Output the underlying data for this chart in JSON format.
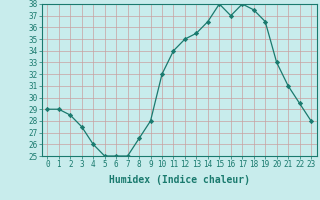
{
  "xlabel": "Humidex (Indice chaleur)",
  "ylabel": "",
  "x": [
    0,
    1,
    2,
    3,
    4,
    5,
    6,
    7,
    8,
    9,
    10,
    11,
    12,
    13,
    14,
    15,
    16,
    17,
    18,
    19,
    20,
    21,
    22,
    23
  ],
  "y": [
    29.0,
    29.0,
    28.5,
    27.5,
    26.0,
    25.0,
    25.0,
    25.0,
    26.5,
    28.0,
    32.0,
    34.0,
    35.0,
    35.5,
    36.5,
    38.0,
    37.0,
    38.0,
    37.5,
    36.5,
    33.0,
    31.0,
    29.5,
    28.0
  ],
  "line_color": "#1a7a6e",
  "marker": "D",
  "marker_size": 2.2,
  "bg_color": "#c8ecec",
  "grid_color": "#c8a0a0",
  "ylim": [
    25,
    38
  ],
  "yticks": [
    25,
    26,
    27,
    28,
    29,
    30,
    31,
    32,
    33,
    34,
    35,
    36,
    37,
    38
  ],
  "xlim": [
    -0.5,
    23.5
  ],
  "xticks": [
    0,
    1,
    2,
    3,
    4,
    5,
    6,
    7,
    8,
    9,
    10,
    11,
    12,
    13,
    14,
    15,
    16,
    17,
    18,
    19,
    20,
    21,
    22,
    23
  ],
  "tick_label_fontsize": 5.5,
  "xlabel_fontsize": 7.0,
  "axis_color": "#1a7a6e",
  "spine_color": "#1a7a6e"
}
